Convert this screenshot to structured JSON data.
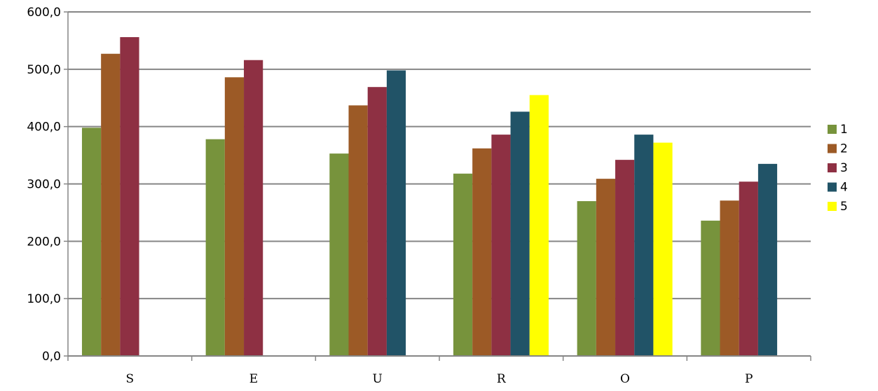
{
  "chart_data": {
    "type": "bar",
    "categories": [
      "S",
      "E",
      "U",
      "R",
      "O",
      "P"
    ],
    "series": [
      {
        "name": "1",
        "color": "#77933c",
        "values": [
          398,
          378,
          353,
          318,
          270,
          236
        ]
      },
      {
        "name": "2",
        "color": "#9c5a26",
        "values": [
          527,
          486,
          437,
          362,
          309,
          271
        ]
      },
      {
        "name": "3",
        "color": "#8e3043",
        "values": [
          556,
          516,
          469,
          386,
          342,
          304
        ]
      },
      {
        "name": "4",
        "color": "#215367",
        "values": [
          null,
          null,
          498,
          426,
          386,
          335
        ]
      },
      {
        "name": "5",
        "color": "#ffff00",
        "values": [
          null,
          null,
          null,
          455,
          372,
          null
        ]
      }
    ],
    "ylim": [
      0,
      600
    ],
    "yticks": [
      0,
      100,
      200,
      300,
      400,
      500,
      600
    ],
    "ytick_labels": [
      "0,0",
      "100,0",
      "200,0",
      "300,0",
      "400,0",
      "500,0",
      "600,0"
    ],
    "grid": true,
    "legend_position": "right",
    "title": "",
    "xlabel": "",
    "ylabel": ""
  }
}
